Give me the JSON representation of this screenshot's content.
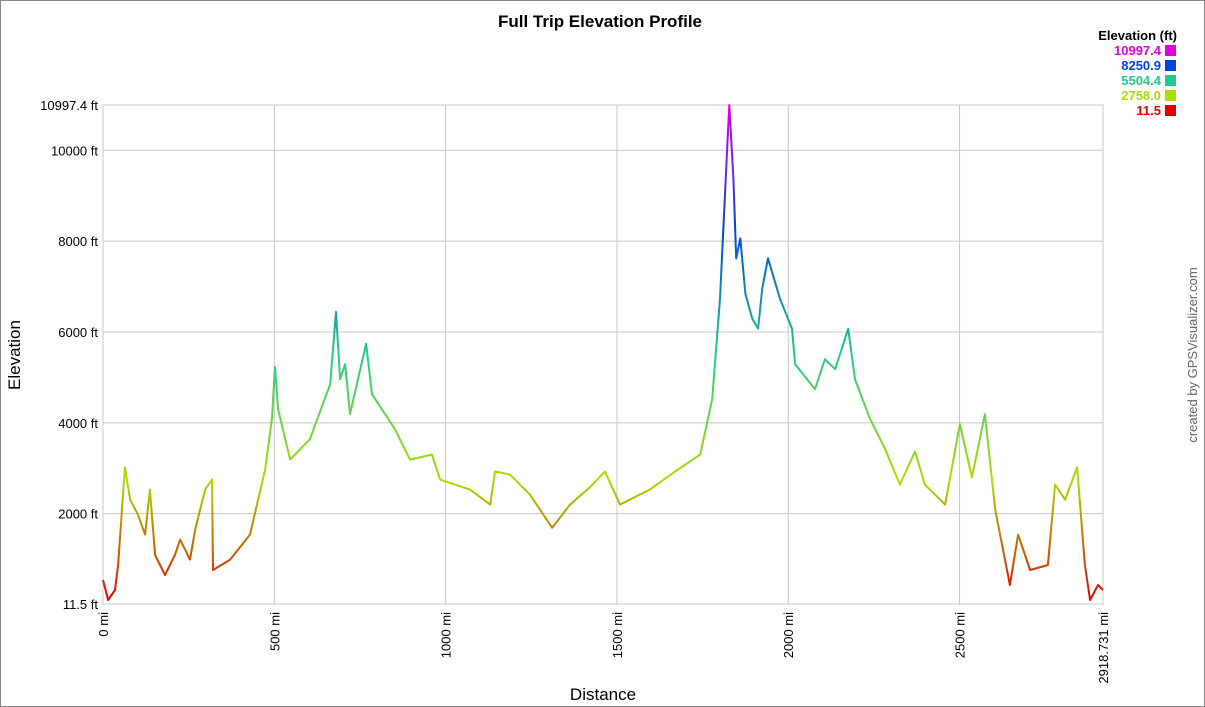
{
  "chart_data": {
    "type": "line",
    "title": "Full Trip Elevation Profile",
    "x_label": "Distance",
    "y_label": "Elevation",
    "credit": "created by GPSVisualizer.com",
    "legend": {
      "title": "Elevation (ft)",
      "entries": [
        {
          "value": 10997.4,
          "color": "#e000e0"
        },
        {
          "value": 8250.9,
          "color": "#0044dd"
        },
        {
          "value": 5504.4,
          "color": "#22cc88"
        },
        {
          "value": 2758,
          "label": "2758.0",
          "color": "#aadd00"
        },
        {
          "value": 11.5,
          "color": "#e00000"
        }
      ]
    },
    "xlim": [
      0,
      2918.731
    ],
    "ylim": [
      11.5,
      10997.4
    ],
    "xticks": [
      {
        "value": 0,
        "label": "0 mi"
      },
      {
        "value": 500,
        "label": "500 mi"
      },
      {
        "value": 1000,
        "label": "1000 mi"
      },
      {
        "value": 1500,
        "label": "1500 mi"
      },
      {
        "value": 2000,
        "label": "2000 mi"
      },
      {
        "value": 2500,
        "label": "2500 mi"
      },
      {
        "value": 2918.731,
        "label": "2918.731 mi"
      }
    ],
    "yticks": [
      {
        "value": 11.5,
        "label": "11.5 ft"
      },
      {
        "value": 2000,
        "label": "2000 ft"
      },
      {
        "value": 4000,
        "label": "4000 ft"
      },
      {
        "value": 6000,
        "label": "6000 ft"
      },
      {
        "value": 8000,
        "label": "8000 ft"
      },
      {
        "value": 10000,
        "label": "10000 ft"
      },
      {
        "value": 10997.4,
        "label": "10997.4 ft"
      }
    ],
    "grid": true,
    "x": [
      0,
      15,
      35,
      44,
      64,
      79,
      102,
      123,
      137,
      152,
      181,
      210,
      225,
      254,
      269,
      298,
      318,
      321,
      371,
      429,
      473,
      493,
      502,
      511,
      546,
      604,
      663,
      680,
      692,
      707,
      721,
      768,
      785,
      852,
      896,
      960,
      984,
      1071,
      1130,
      1144,
      1188,
      1246,
      1311,
      1363,
      1421,
      1465,
      1509,
      1596,
      1670,
      1743,
      1778,
      1801,
      1822,
      1828,
      1840,
      1848,
      1860,
      1875,
      1895,
      1912,
      1924,
      1941,
      1976,
      2011,
      2020,
      2078,
      2107,
      2137,
      2175,
      2195,
      2239,
      2283,
      2326,
      2370,
      2399,
      2458,
      2501,
      2536,
      2574,
      2604,
      2647,
      2671,
      2706,
      2758,
      2779,
      2808,
      2843,
      2866,
      2881,
      2904,
      2918.731
    ],
    "series": [
      {
        "name": "Elevation",
        "values": [
          541,
          100,
          320,
          870,
          3020,
          2310,
          1980,
          1540,
          2530,
          1090,
          650,
          1090,
          1430,
          990,
          1650,
          2530,
          2750,
          760,
          990,
          1540,
          2970,
          4080,
          5230,
          4300,
          3190,
          3640,
          4850,
          6440,
          4960,
          5290,
          4190,
          5740,
          4630,
          3860,
          3190,
          3300,
          2750,
          2530,
          2200,
          2930,
          2860,
          2420,
          1690,
          2200,
          2580,
          2930,
          2200,
          2530,
          2930,
          3300,
          4520,
          6730,
          10050,
          10995,
          9380,
          7620,
          8060,
          6840,
          6290,
          6070,
          6950,
          7620,
          6730,
          6070,
          5290,
          4740,
          5400,
          5180,
          6070,
          4960,
          4080,
          3420,
          2640,
          3370,
          2640,
          2200,
          3970,
          2800,
          4190,
          2090,
          430,
          1540,
          760,
          870,
          2640,
          2310,
          3020,
          870,
          100,
          430,
          320
        ]
      }
    ]
  }
}
